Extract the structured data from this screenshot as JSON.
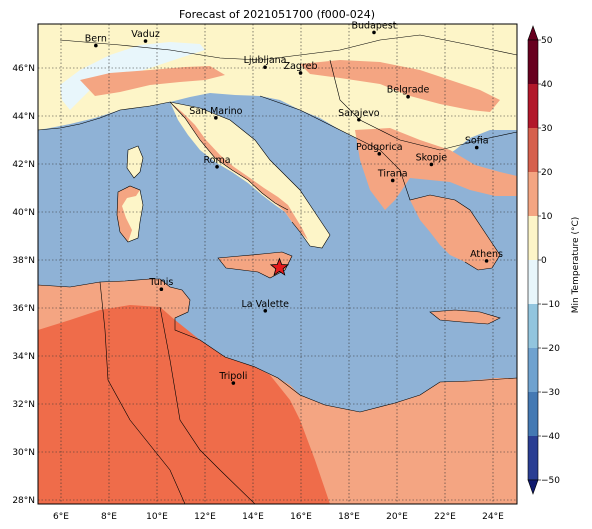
{
  "title": "Forecast of 2021051700 (f000-024)",
  "colorbar": {
    "label": "Min Temperature (°C)",
    "ticks": [
      "50",
      "40",
      "30",
      "20",
      "10",
      "0",
      "−10",
      "−20",
      "−30",
      "−40",
      "−50"
    ],
    "colors": [
      "#67001f",
      "#b2182b",
      "#d6604d",
      "#f4a582",
      "#fdf5c8",
      "#e8f6fb",
      "#92c5de",
      "#6fa2cf",
      "#4479b3",
      "#2a3e93",
      "#101a6e"
    ]
  },
  "axes": {
    "x_ticks": [
      "6°E",
      "8°E",
      "10°E",
      "12°E",
      "14°E",
      "16°E",
      "18°E",
      "20°E",
      "22°E",
      "24°E"
    ],
    "y_ticks": [
      "46°N",
      "44°N",
      "42°N",
      "40°N",
      "38°N",
      "36°N",
      "34°N",
      "32°N",
      "30°N",
      "28°N"
    ]
  },
  "cities": [
    {
      "name": "Bern",
      "lon": 7.45,
      "lat": 46.95
    },
    {
      "name": "Vaduz",
      "lon": 9.52,
      "lat": 47.14
    },
    {
      "name": "Budapest",
      "lon": 19.04,
      "lat": 47.5
    },
    {
      "name": "Ljubljana",
      "lon": 14.5,
      "lat": 46.05
    },
    {
      "name": "Zagreb",
      "lon": 15.98,
      "lat": 45.81
    },
    {
      "name": "Belgrade",
      "lon": 20.46,
      "lat": 44.82
    },
    {
      "name": "San Marino",
      "lon": 12.45,
      "lat": 43.94
    },
    {
      "name": "Sarajevo",
      "lon": 18.41,
      "lat": 43.86
    },
    {
      "name": "Roma",
      "lon": 12.5,
      "lat": 41.9
    },
    {
      "name": "Podgorica",
      "lon": 19.26,
      "lat": 42.44
    },
    {
      "name": "Skopje",
      "lon": 21.43,
      "lat": 42.0
    },
    {
      "name": "Sofia",
      "lon": 23.32,
      "lat": 42.7
    },
    {
      "name": "Tirana",
      "lon": 19.82,
      "lat": 41.33
    },
    {
      "name": "Athens",
      "lon": 23.73,
      "lat": 37.98
    },
    {
      "name": "Tunis",
      "lon": 10.18,
      "lat": 36.8
    },
    {
      "name": "La Valette",
      "lon": 14.51,
      "lat": 35.9
    },
    {
      "name": "Tripoli",
      "lon": 13.18,
      "lat": 32.89
    }
  ],
  "marker": {
    "type": "star",
    "lon": 15.1,
    "lat": 37.7,
    "color": "#e41a1c"
  }
}
